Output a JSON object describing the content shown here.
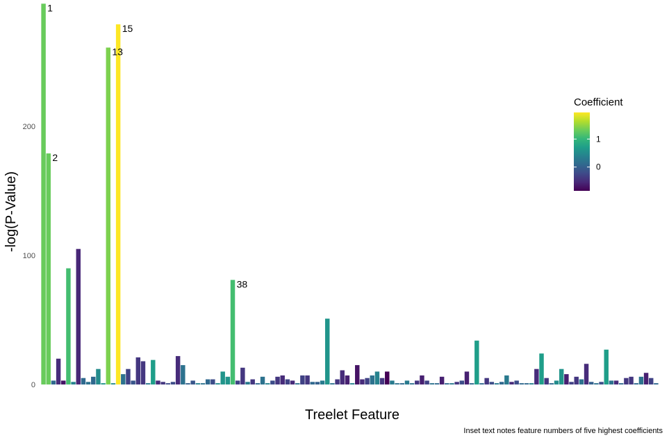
{
  "chart_data": {
    "type": "bar",
    "xlabel": "Treelet Feature",
    "ylabel": "-log(P-Value)",
    "caption": "Inset text notes feature numbers of five highest coefficients",
    "ylim": [
      0,
      295
    ],
    "y_ticks": [
      "0",
      "100",
      "200"
    ],
    "grid": false,
    "legend": {
      "title": "Coefficient",
      "placement": "right",
      "ticks": [
        "1",
        "0"
      ],
      "colormap": "viridis",
      "range": [
        -0.85,
        1.95
      ]
    },
    "values": [
      295,
      179,
      3,
      20,
      3,
      90,
      2,
      105,
      5,
      2,
      6,
      12,
      1,
      261,
      1,
      279,
      8,
      12,
      3,
      21,
      18,
      1,
      19,
      3,
      2,
      1,
      2,
      22,
      15,
      1,
      3,
      1,
      1,
      4,
      4,
      1,
      10,
      6,
      81,
      3,
      13,
      2,
      4,
      1,
      6,
      1,
      3,
      6,
      7,
      4,
      3,
      1,
      7,
      7,
      2,
      2,
      3,
      51,
      1,
      4,
      11,
      7,
      1,
      15,
      4,
      5,
      7,
      10,
      5,
      10,
      3,
      1,
      1,
      3,
      1,
      3,
      7,
      3,
      1,
      1,
      6,
      1,
      1,
      2,
      3,
      10,
      1,
      34,
      1,
      5,
      2,
      1,
      2,
      7,
      2,
      3,
      1,
      1,
      1,
      12,
      24,
      5,
      1,
      3,
      12,
      8,
      2,
      6,
      4,
      16,
      2,
      1,
      2,
      27,
      3,
      3,
      1,
      5,
      6,
      1,
      6,
      9,
      5,
      1
    ],
    "coefficients": [
      1.3,
      1.3,
      0.1,
      -0.5,
      -0.7,
      1.1,
      0.4,
      -0.55,
      0.1,
      0.2,
      0.1,
      0.5,
      0.6,
      1.4,
      0.5,
      1.95,
      0.2,
      -0.3,
      -0.1,
      -0.4,
      -0.4,
      0.3,
      0.7,
      -0.5,
      -0.4,
      -0.2,
      -0.2,
      -0.5,
      0.2,
      0.0,
      -0.1,
      0.4,
      0.2,
      0.1,
      -0.2,
      0.5,
      0.6,
      0.6,
      1.1,
      -0.3,
      -0.4,
      0.3,
      -0.4,
      0.1,
      0.2,
      0.4,
      -0.2,
      -0.4,
      -0.5,
      -0.3,
      -0.5,
      0.2,
      -0.3,
      -0.4,
      0.1,
      0.0,
      0.3,
      0.6,
      0.2,
      -0.4,
      -0.5,
      -0.6,
      0.4,
      -0.7,
      -0.5,
      -0.3,
      0.2,
      0.4,
      -0.4,
      -0.85,
      0.3,
      0.2,
      0.1,
      0.3,
      0.2,
      -0.4,
      -0.6,
      -0.3,
      0.2,
      0.1,
      -0.6,
      0.1,
      0.3,
      -0.4,
      -0.2,
      -0.6,
      0.1,
      0.7,
      0.1,
      -0.4,
      -0.2,
      0.3,
      0.1,
      0.3,
      -0.5,
      -0.2,
      0.1,
      0.1,
      0.4,
      -0.5,
      0.7,
      -0.4,
      0.1,
      0.5,
      0.6,
      -0.6,
      -0.3,
      -0.4,
      0.2,
      -0.5,
      0.0,
      0.2,
      -0.2,
      0.7,
      0.2,
      -0.5,
      0.1,
      -0.4,
      -0.4,
      0.1,
      0.2,
      -0.6,
      -0.3,
      0.1
    ],
    "labeled_bars": [
      {
        "index": 0,
        "label": "1"
      },
      {
        "index": 1,
        "label": "2"
      },
      {
        "index": 13,
        "label": "13"
      },
      {
        "index": 15,
        "label": "15"
      },
      {
        "index": 38,
        "label": "38"
      }
    ]
  }
}
